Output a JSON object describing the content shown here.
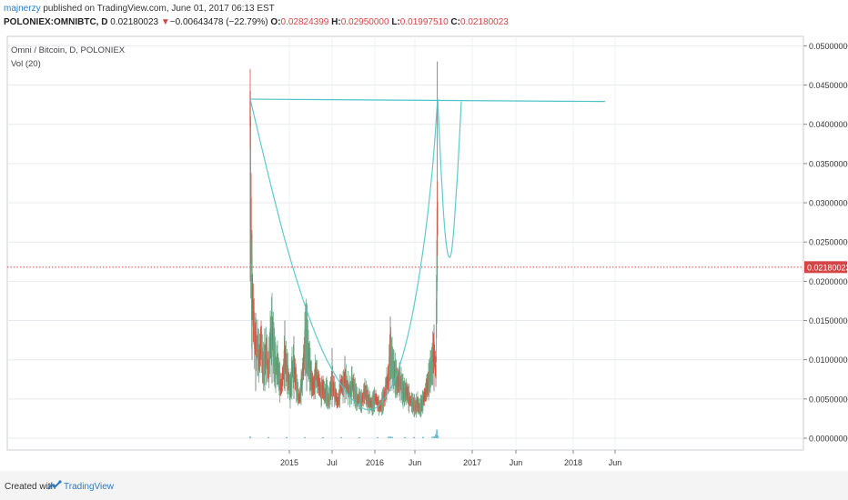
{
  "publish": {
    "author": "majnerzy",
    "text": " published on TradingView.com, June 01, 2017 06:13 EST"
  },
  "ohlc": {
    "symbol": "POLONIEX:OMNIBTC, D",
    "last": "0.02180023",
    "arrow": "▼",
    "change": "−0.00643478 (−22.79%)",
    "o_label": "O:",
    "o": "0.02824399",
    "h_label": "H:",
    "h": "0.02950000",
    "l_label": "L:",
    "l": "0.01997510",
    "c_label": "C:",
    "c": "0.02180023"
  },
  "legend": {
    "title": "Omni / Bitcoin, D, POLONIEX",
    "indicator": "Vol (20)"
  },
  "footer": {
    "created_with": "Created with",
    "brand": "TradingView"
  },
  "colors": {
    "up": "#6ba583",
    "down": "#d75442",
    "drawing": "#4fc3c7",
    "last_price": "#d64545",
    "volume": "#5bb7c9"
  },
  "chart_data": {
    "type": "candlestick",
    "title": "Omni / Bitcoin, D, POLONIEX",
    "x_ticks": [
      "2015",
      "Jul",
      "2016",
      "Jun",
      "2017",
      "Jun",
      "2018",
      "Jun"
    ],
    "y_ticks": [
      "0.05000000",
      "0.04500000",
      "0.04000000",
      "0.03500000",
      "0.03000000",
      "0.02500000",
      "0.02000000",
      "0.01500000",
      "0.01000000",
      "0.00500000",
      "0.00000000"
    ],
    "ylim": [
      0,
      0.05
    ],
    "last_price_label": "0.02180023",
    "price_outline": [
      [
        0.0,
        0.042
      ],
      [
        0.3,
        0.024
      ],
      [
        0.5,
        0.028
      ],
      [
        0.8,
        0.018
      ],
      [
        1.0,
        0.02
      ],
      [
        2,
        0.014
      ],
      [
        3,
        0.012
      ],
      [
        4,
        0.0115
      ],
      [
        5,
        0.01
      ],
      [
        6,
        0.0125
      ],
      [
        7,
        0.009
      ],
      [
        8,
        0.0095
      ],
      [
        9,
        0.011
      ],
      [
        10,
        0.0085
      ],
      [
        11,
        0.012
      ],
      [
        12,
        0.0145
      ],
      [
        13,
        0.011
      ],
      [
        14,
        0.009
      ],
      [
        15,
        0.0095
      ],
      [
        16,
        0.0075
      ],
      [
        17,
        0.0065
      ],
      [
        18,
        0.008
      ],
      [
        19,
        0.0105
      ],
      [
        20,
        0.009
      ],
      [
        21,
        0.0075
      ],
      [
        22,
        0.006
      ],
      [
        23,
        0.0085
      ],
      [
        24,
        0.0095
      ],
      [
        25,
        0.0075
      ],
      [
        26,
        0.006
      ],
      [
        27,
        0.005
      ],
      [
        28,
        0.0065
      ],
      [
        29,
        0.0085
      ],
      [
        30,
        0.012
      ],
      [
        31,
        0.0135
      ],
      [
        32,
        0.0105
      ],
      [
        33,
        0.0085
      ],
      [
        34,
        0.007
      ],
      [
        35,
        0.0065
      ],
      [
        36,
        0.0085
      ],
      [
        37,
        0.0075
      ],
      [
        38,
        0.0068
      ],
      [
        39,
        0.0058
      ],
      [
        40,
        0.0065
      ],
      [
        41,
        0.0055
      ],
      [
        42,
        0.006
      ],
      [
        43,
        0.0048
      ],
      [
        44,
        0.0058
      ],
      [
        45,
        0.0075
      ],
      [
        46,
        0.0062
      ],
      [
        47,
        0.0055
      ],
      [
        48,
        0.0045
      ],
      [
        49,
        0.0055
      ],
      [
        50,
        0.007
      ],
      [
        51,
        0.0065
      ],
      [
        52,
        0.008
      ],
      [
        53,
        0.0068
      ],
      [
        54,
        0.0062
      ],
      [
        55,
        0.0058
      ],
      [
        56,
        0.0072
      ],
      [
        57,
        0.0062
      ],
      [
        58,
        0.0055
      ],
      [
        59,
        0.0048
      ],
      [
        60,
        0.0052
      ],
      [
        61,
        0.0045
      ],
      [
        62,
        0.0052
      ],
      [
        63,
        0.006
      ],
      [
        64,
        0.0055
      ],
      [
        65,
        0.0048
      ],
      [
        66,
        0.0045
      ],
      [
        67,
        0.0042
      ],
      [
        68,
        0.0048
      ],
      [
        69,
        0.0052
      ],
      [
        70,
        0.0045
      ],
      [
        71,
        0.004
      ],
      [
        72,
        0.0042
      ],
      [
        73,
        0.0048
      ],
      [
        74,
        0.0055
      ],
      [
        75,
        0.0068
      ],
      [
        76,
        0.0078
      ],
      [
        77,
        0.0115
      ],
      [
        78,
        0.0095
      ],
      [
        79,
        0.0085
      ],
      [
        80,
        0.0078
      ],
      [
        81,
        0.007
      ],
      [
        82,
        0.0075
      ],
      [
        83,
        0.0068
      ],
      [
        84,
        0.006
      ],
      [
        85,
        0.0058
      ],
      [
        86,
        0.006
      ],
      [
        87,
        0.0052
      ],
      [
        88,
        0.0048
      ],
      [
        89,
        0.0045
      ],
      [
        90,
        0.0042
      ],
      [
        91,
        0.004
      ],
      [
        92,
        0.0045
      ],
      [
        93,
        0.0038
      ],
      [
        94,
        0.0042
      ],
      [
        95,
        0.0048
      ],
      [
        96,
        0.0055
      ],
      [
        97,
        0.0065
      ],
      [
        98,
        0.0072
      ],
      [
        99,
        0.0085
      ],
      [
        100,
        0.0095
      ],
      [
        101,
        0.0115
      ],
      [
        102,
        0.0085
      ],
      [
        102.6,
        0.022
      ],
      [
        102.9,
        0.028
      ],
      [
        103.1,
        0.0218
      ]
    ],
    "price_wicks": [
      [
        0.0,
        0.044,
        0.02
      ],
      [
        0.2,
        0.041,
        0.026
      ],
      [
        1.0,
        0.026,
        0.01
      ],
      [
        3,
        0.016,
        0.006
      ],
      [
        8,
        0.014,
        0.006
      ],
      [
        12,
        0.016,
        0.007
      ],
      [
        19,
        0.015,
        0.006
      ],
      [
        24,
        0.013,
        0.005
      ],
      [
        31,
        0.015,
        0.006
      ],
      [
        45,
        0.0115,
        0.004
      ],
      [
        52,
        0.0105,
        0.0045
      ],
      [
        77,
        0.0155,
        0.006
      ],
      [
        101,
        0.0145,
        0.006
      ],
      [
        102.8,
        0.048,
        0.02
      ]
    ],
    "volume": [
      [
        0,
        0.0008
      ],
      [
        10,
        0.0003
      ],
      [
        20,
        0.0003
      ],
      [
        30,
        0.0002
      ],
      [
        40,
        0.0002
      ],
      [
        50,
        0.0002
      ],
      [
        60,
        0.0002
      ],
      [
        70,
        0.0002
      ],
      [
        76,
        0.0006
      ],
      [
        77,
        0.0009
      ],
      [
        78,
        0.0005
      ],
      [
        85,
        0.0003
      ],
      [
        90,
        0.0003
      ],
      [
        95,
        0.0004
      ],
      [
        100,
        0.0006
      ],
      [
        101,
        0.0012
      ],
      [
        102,
        0.0035
      ],
      [
        102.6,
        0.0085
      ],
      [
        103.1,
        0.002
      ]
    ],
    "drawings": {
      "horizontal_line": [
        [
          0,
          0.0432
        ],
        [
          195,
          0.0429
        ]
      ],
      "cup_curve": [
        [
          0,
          0.0432
        ],
        [
          10,
          0.0335
        ],
        [
          20,
          0.0245
        ],
        [
          30,
          0.017
        ],
        [
          40,
          0.011
        ],
        [
          50,
          0.0068
        ],
        [
          58,
          0.0045
        ],
        [
          65,
          0.0036
        ],
        [
          72,
          0.0045
        ],
        [
          80,
          0.0078
        ],
        [
          88,
          0.0145
        ],
        [
          95,
          0.024
        ],
        [
          100,
          0.034
        ],
        [
          103,
          0.0432
        ]
      ],
      "handle_curve": [
        [
          103,
          0.0432
        ],
        [
          104.5,
          0.036
        ],
        [
          106,
          0.0295
        ],
        [
          107.5,
          0.0252
        ],
        [
          109,
          0.0232
        ],
        [
          110.5,
          0.0236
        ],
        [
          112,
          0.027
        ],
        [
          114,
          0.034
        ],
        [
          116,
          0.0429
        ]
      ]
    }
  }
}
